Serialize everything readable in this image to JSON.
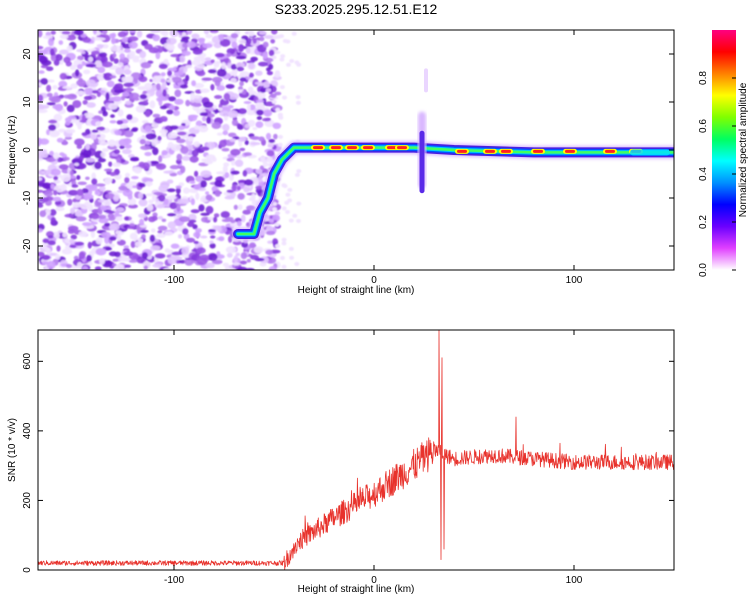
{
  "title": "S233.2025.295.12.51.E12",
  "chart_data": [
    {
      "type": "heatmap",
      "xlabel": "Height of straight line (km)",
      "ylabel": "Frequency (Hz)",
      "xlim": [
        -168,
        150
      ],
      "ylim": [
        -25,
        25
      ],
      "xticks": [
        -100,
        0,
        100
      ],
      "yticks": [
        -20,
        -10,
        0,
        10,
        20
      ],
      "ridge": [
        {
          "x": -68,
          "y": -17.5
        },
        {
          "x": -60,
          "y": -17.5
        },
        {
          "x": -57,
          "y": -13
        },
        {
          "x": -53,
          "y": -10
        },
        {
          "x": -50,
          "y": -5
        },
        {
          "x": -46,
          "y": -2
        },
        {
          "x": -40,
          "y": 0.5
        },
        {
          "x": -30,
          "y": 0.5
        },
        {
          "x": 0,
          "y": 0.5
        },
        {
          "x": 20,
          "y": 0.5
        },
        {
          "x": 40,
          "y": 0
        },
        {
          "x": 80,
          "y": -0.5
        },
        {
          "x": 110,
          "y": -0.5
        },
        {
          "x": 150,
          "y": -0.5
        }
      ],
      "colorbar": {
        "label": "Normalized spectral amplitude",
        "range": [
          0,
          1
        ],
        "ticks": [
          0,
          0.2,
          0.4,
          0.6,
          0.8
        ],
        "colors": [
          "#ffffff",
          "#e040ff",
          "#6a00ff",
          "#0000ff",
          "#0090ff",
          "#00ffff",
          "#00ff60",
          "#80ff00",
          "#ffff00",
          "#ff8000",
          "#ff0000",
          "#ff0080"
        ]
      }
    },
    {
      "type": "line",
      "xlabel": "Height of straight line (km)",
      "ylabel": "SNR (10 * v/v)",
      "xlim": [
        -168,
        150
      ],
      "ylim": [
        0,
        690
      ],
      "xticks": [
        -100,
        0,
        100
      ],
      "yticks": [
        0,
        200,
        400,
        600
      ],
      "color": "#e8322c",
      "trend": [
        {
          "x": -168,
          "y": 20
        },
        {
          "x": -45,
          "y": 20
        },
        {
          "x": -38,
          "y": 80
        },
        {
          "x": -20,
          "y": 150
        },
        {
          "x": 0,
          "y": 220
        },
        {
          "x": 20,
          "y": 300
        },
        {
          "x": 30,
          "y": 345
        },
        {
          "x": 40,
          "y": 320
        },
        {
          "x": 60,
          "y": 330
        },
        {
          "x": 80,
          "y": 320
        },
        {
          "x": 100,
          "y": 310
        },
        {
          "x": 150,
          "y": 310
        }
      ],
      "spikes": [
        {
          "x": 32.5,
          "y": 690
        },
        {
          "x": 33.5,
          "y": 30
        },
        {
          "x": 34,
          "y": 610
        },
        {
          "x": 35,
          "y": 60
        },
        {
          "x": 71,
          "y": 440
        }
      ]
    }
  ]
}
